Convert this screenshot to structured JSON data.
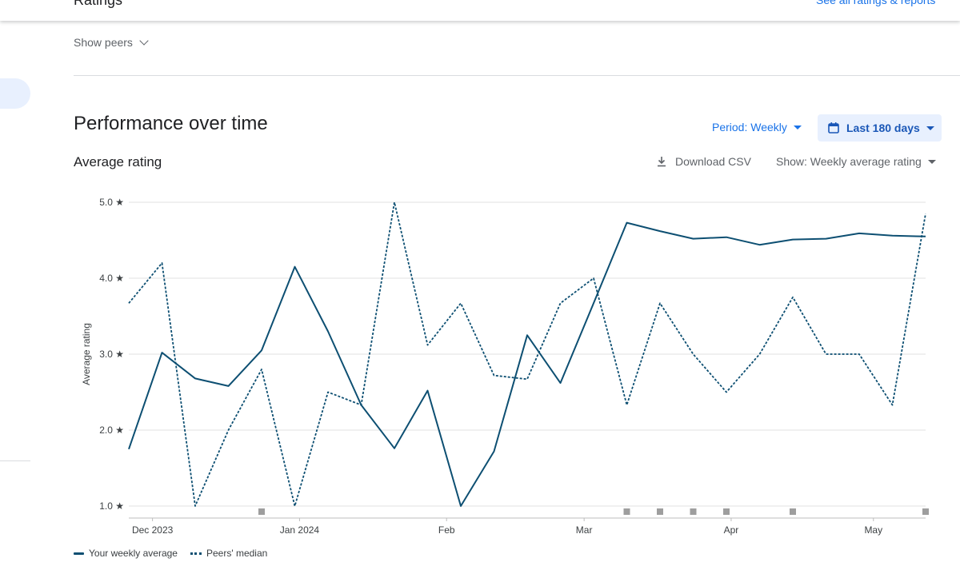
{
  "header": {
    "top_card_title": "Ratings",
    "top_card_action": "See all ratings & reports",
    "show_peers_label": "Show peers"
  },
  "performance": {
    "title": "Performance over time",
    "period_label": "Period: Weekly",
    "date_range_label": "Last 180 days",
    "chart_title": "Average rating",
    "download_label": "Download CSV",
    "show_label": "Show: Weekly average rating"
  },
  "colors": {
    "series": "#0d4f72",
    "accent": "#1a73e8",
    "grid": "#e0e0e0"
  },
  "chart_data": {
    "type": "line",
    "ylabel": "Average rating",
    "ylim": [
      1.0,
      5.0
    ],
    "yticks": [
      1.0,
      2.0,
      3.0,
      4.0,
      5.0
    ],
    "ytick_suffix": " ★",
    "grid": true,
    "legend_position": "bottom-left",
    "x": [
      "2023-11-26",
      "2023-12-03",
      "2023-12-10",
      "2023-12-17",
      "2023-12-24",
      "2023-12-31",
      "2024-01-07",
      "2024-01-14",
      "2024-01-21",
      "2024-01-28",
      "2024-02-04",
      "2024-02-11",
      "2024-02-18",
      "2024-02-25",
      "2024-03-03",
      "2024-03-10",
      "2024-03-17",
      "2024-03-24",
      "2024-03-31",
      "2024-04-07",
      "2024-04-14",
      "2024-04-21",
      "2024-04-28",
      "2024-05-05",
      "2024-05-12"
    ],
    "xtick_labels": [
      {
        "date": "2023-12-01",
        "label": "Dec 2023"
      },
      {
        "date": "2024-01-01",
        "label": "Jan 2024"
      },
      {
        "date": "2024-02-01",
        "label": "Feb"
      },
      {
        "date": "2024-03-01",
        "label": "Mar"
      },
      {
        "date": "2024-04-01",
        "label": "Apr"
      },
      {
        "date": "2024-05-01",
        "label": "May"
      }
    ],
    "series": [
      {
        "name": "Your weekly average",
        "style": "solid",
        "values": [
          1.75,
          3.02,
          2.68,
          2.58,
          3.05,
          4.15,
          3.3,
          2.33,
          1.76,
          2.52,
          1.0,
          1.72,
          3.25,
          2.62,
          3.67,
          4.73,
          4.62,
          4.52,
          4.54,
          4.44,
          4.51,
          4.52,
          4.59,
          4.56,
          4.55
        ]
      },
      {
        "name": "Peers' median",
        "style": "dotted",
        "values": [
          3.67,
          4.2,
          1.0,
          2.0,
          2.8,
          1.0,
          2.5,
          2.33,
          5.0,
          3.12,
          3.67,
          2.72,
          2.67,
          3.67,
          4.0,
          2.33,
          3.67,
          3.0,
          2.5,
          3.0,
          3.75,
          3.0,
          3.0,
          2.33,
          4.85
        ]
      }
    ],
    "flag_markers": [
      "2023-12-24",
      "2024-03-10",
      "2024-03-17",
      "2024-03-24",
      "2024-03-31",
      "2024-04-14",
      "2024-05-12"
    ]
  }
}
